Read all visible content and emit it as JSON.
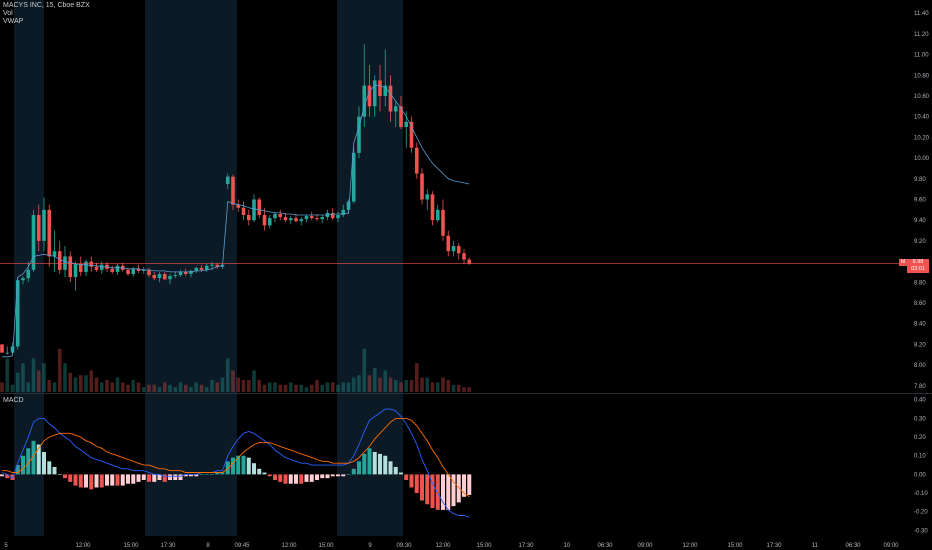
{
  "legend": {
    "symbol": "MACYS INC, 15, Cboe BZX",
    "volume": "Vol",
    "vwap": "VWAP"
  },
  "macd_label": "MACD",
  "price_tag": {
    "badge": "M",
    "value": "8.98",
    "countdown": "03:01"
  },
  "colors": {
    "background": "#000000",
    "up": "#26a69a",
    "down": "#ef5350",
    "vwap": "#5b9bd5",
    "macd_line": "#2962ff",
    "signal_line": "#ff6d00",
    "session_shade": "#0b1a24"
  },
  "price_axis": {
    "ticks": [
      "11.40",
      "11.20",
      "11.00",
      "10.80",
      "10.60",
      "10.40",
      "10.20",
      "10.00",
      "9.80",
      "9.60",
      "9.40",
      "9.20",
      "9.00",
      "8.80",
      "8.60",
      "8.40",
      "8.20",
      "8.00",
      "7.80"
    ]
  },
  "macd_axis": {
    "ticks": [
      "0.40",
      "0.30",
      "0.20",
      "0.10",
      "0.00",
      "-0.10",
      "-0.20",
      "-0.30"
    ]
  },
  "time_axis": {
    "ticks": [
      "5",
      "12:00",
      "15:00",
      "17:30",
      "8",
      "09:45",
      "12:00",
      "15:00",
      "9",
      "09:30",
      "12:00",
      "15:00",
      "17:30",
      "10",
      "06:30",
      "09:00",
      "12:00",
      "15:00",
      "17:30",
      "11",
      "06:30",
      "09:00"
    ]
  },
  "chart_data": {
    "type": "candlestick",
    "title": "MACYS INC, 15, Cboe BZX",
    "ylim": [
      7.74,
      11.45
    ],
    "candles": [
      [
        8.2,
        8.2,
        8.12,
        8.12
      ],
      [
        8.12,
        8.18,
        8.1,
        8.12
      ],
      [
        8.12,
        8.22,
        8.1,
        8.18
      ],
      [
        8.18,
        8.85,
        8.15,
        8.82
      ],
      [
        8.82,
        8.86,
        8.78,
        8.84
      ],
      [
        8.84,
        9.0,
        8.8,
        8.92
      ],
      [
        8.92,
        9.5,
        8.9,
        9.45
      ],
      [
        9.45,
        9.55,
        9.1,
        9.2
      ],
      [
        9.2,
        9.62,
        9.1,
        9.5
      ],
      [
        9.5,
        9.55,
        8.95,
        9.05
      ],
      [
        9.05,
        9.3,
        8.9,
        9.1
      ],
      [
        9.1,
        9.2,
        8.88,
        8.92
      ],
      [
        8.92,
        9.15,
        8.85,
        9.05
      ],
      [
        9.05,
        9.1,
        8.8,
        8.85
      ],
      [
        8.85,
        9.0,
        8.72,
        8.98
      ],
      [
        8.98,
        9.05,
        8.86,
        8.9
      ],
      [
        8.9,
        9.02,
        8.86,
        9.0
      ],
      [
        9.0,
        9.05,
        8.9,
        8.95
      ],
      [
        8.95,
        8.99,
        8.9,
        8.92
      ],
      [
        8.92,
        9.0,
        8.88,
        8.97
      ],
      [
        8.97,
        9.0,
        8.9,
        8.93
      ],
      [
        8.93,
        8.96,
        8.88,
        8.9
      ],
      [
        8.9,
        8.98,
        8.87,
        8.96
      ],
      [
        8.96,
        8.99,
        8.9,
        8.92
      ],
      [
        8.92,
        8.94,
        8.86,
        8.88
      ],
      [
        8.88,
        8.95,
        8.85,
        8.93
      ],
      [
        8.93,
        8.97,
        8.89,
        8.91
      ],
      [
        8.91,
        8.95,
        8.88,
        8.92
      ],
      [
        8.92,
        8.94,
        8.85,
        8.87
      ],
      [
        8.87,
        8.9,
        8.82,
        8.84
      ],
      [
        8.84,
        8.9,
        8.8,
        8.88
      ],
      [
        8.88,
        8.9,
        8.82,
        8.83
      ],
      [
        8.83,
        8.88,
        8.78,
        8.86
      ],
      [
        8.86,
        8.9,
        8.84,
        8.87
      ],
      [
        8.87,
        8.92,
        8.85,
        8.9
      ],
      [
        8.9,
        8.93,
        8.86,
        8.88
      ],
      [
        8.88,
        8.92,
        8.85,
        8.91
      ],
      [
        8.91,
        8.95,
        8.89,
        8.94
      ],
      [
        8.94,
        8.97,
        8.9,
        8.92
      ],
      [
        8.92,
        8.98,
        8.9,
        8.96
      ],
      [
        8.96,
        9.0,
        8.92,
        8.97
      ],
      [
        8.97,
        8.99,
        8.93,
        8.95
      ],
      [
        8.95,
        8.98,
        8.93,
        8.97
      ],
      [
        9.75,
        9.85,
        9.7,
        9.82
      ],
      [
        9.82,
        9.84,
        9.5,
        9.55
      ],
      [
        9.55,
        9.6,
        9.48,
        9.52
      ],
      [
        9.52,
        9.58,
        9.4,
        9.45
      ],
      [
        9.45,
        9.5,
        9.35,
        9.4
      ],
      [
        9.4,
        9.65,
        9.38,
        9.6
      ],
      [
        9.6,
        9.62,
        9.42,
        9.45
      ],
      [
        9.45,
        9.52,
        9.3,
        9.35
      ],
      [
        9.35,
        9.45,
        9.32,
        9.42
      ],
      [
        9.42,
        9.48,
        9.38,
        9.46
      ],
      [
        9.46,
        9.5,
        9.4,
        9.43
      ],
      [
        9.43,
        9.47,
        9.38,
        9.4
      ],
      [
        9.4,
        9.44,
        9.36,
        9.42
      ],
      [
        9.42,
        9.46,
        9.38,
        9.39
      ],
      [
        9.39,
        9.43,
        9.35,
        9.41
      ],
      [
        9.41,
        9.45,
        9.38,
        9.44
      ],
      [
        9.44,
        9.48,
        9.4,
        9.42
      ],
      [
        9.42,
        9.46,
        9.39,
        9.41
      ],
      [
        9.41,
        9.45,
        9.37,
        9.43
      ],
      [
        9.43,
        9.5,
        9.4,
        9.47
      ],
      [
        9.47,
        9.52,
        9.4,
        9.42
      ],
      [
        9.42,
        9.48,
        9.38,
        9.45
      ],
      [
        9.45,
        9.55,
        9.43,
        9.5
      ],
      [
        9.5,
        9.6,
        9.46,
        9.58
      ],
      [
        9.58,
        10.1,
        9.56,
        10.05
      ],
      [
        10.05,
        10.5,
        10.0,
        10.4
      ],
      [
        10.4,
        11.1,
        10.3,
        10.7
      ],
      [
        10.7,
        10.9,
        10.4,
        10.5
      ],
      [
        10.5,
        10.8,
        10.4,
        10.75
      ],
      [
        10.75,
        10.9,
        10.45,
        10.6
      ],
      [
        10.6,
        11.05,
        10.5,
        10.7
      ],
      [
        10.7,
        10.8,
        10.35,
        10.45
      ],
      [
        10.45,
        10.55,
        10.3,
        10.5
      ],
      [
        10.5,
        10.6,
        10.28,
        10.3
      ],
      [
        10.3,
        10.45,
        10.1,
        10.35
      ],
      [
        10.35,
        10.4,
        10.05,
        10.1
      ],
      [
        10.1,
        10.15,
        9.8,
        9.85
      ],
      [
        9.85,
        9.9,
        9.55,
        9.6
      ],
      [
        9.6,
        9.7,
        9.5,
        9.65
      ],
      [
        9.65,
        9.68,
        9.35,
        9.4
      ],
      [
        9.4,
        9.55,
        9.38,
        9.5
      ],
      [
        9.5,
        9.6,
        9.2,
        9.25
      ],
      [
        9.25,
        9.3,
        9.05,
        9.1
      ],
      [
        9.1,
        9.2,
        9.05,
        9.15
      ],
      [
        9.15,
        9.18,
        9.02,
        9.08
      ],
      [
        9.08,
        9.12,
        8.98,
        9.02
      ],
      [
        9.02,
        9.04,
        8.97,
        8.98
      ]
    ],
    "volume": [
      4,
      14,
      3,
      8,
      12,
      4,
      14,
      9,
      12,
      5,
      4,
      18,
      12,
      8,
      6,
      7,
      7,
      9,
      6,
      4,
      5,
      4,
      6,
      4,
      3,
      5,
      4,
      2,
      3,
      3,
      2,
      4,
      3,
      2,
      4,
      3,
      2,
      4,
      3,
      2,
      5,
      4,
      6,
      14,
      9,
      6,
      5,
      5,
      9,
      5,
      3,
      4,
      4,
      3,
      3,
      4,
      3,
      3,
      2,
      3,
      5,
      3,
      4,
      4,
      3,
      4,
      4,
      6,
      7,
      18,
      7,
      10,
      6,
      9,
      6,
      5,
      4,
      5,
      5,
      12,
      6,
      6,
      4,
      4,
      6,
      5,
      3,
      3,
      2,
      2
    ],
    "vwap": [
      8.08,
      8.08,
      8.09,
      8.85,
      8.88,
      8.95,
      9.05,
      9.06,
      9.07,
      9.06,
      9.05,
      9.02,
      9.0,
      8.99,
      8.98,
      8.97,
      8.97,
      8.96,
      8.96,
      8.95,
      8.95,
      8.94,
      8.94,
      8.94,
      8.93,
      8.93,
      8.93,
      8.92,
      8.92,
      8.91,
      8.91,
      8.91,
      8.9,
      8.9,
      8.9,
      8.9,
      8.9,
      8.91,
      8.91,
      8.92,
      8.93,
      8.95,
      8.96,
      9.58,
      9.56,
      9.55,
      9.54,
      9.52,
      9.51,
      9.5,
      9.49,
      9.48,
      9.47,
      9.47,
      9.46,
      9.46,
      9.45,
      9.45,
      9.45,
      9.45,
      9.45,
      9.45,
      9.45,
      9.46,
      9.46,
      9.46,
      9.47,
      10.15,
      10.3,
      10.5,
      10.65,
      10.7,
      10.7,
      10.68,
      10.62,
      10.55,
      10.48,
      10.4,
      10.3,
      10.2,
      10.1,
      10.02,
      9.95,
      9.9,
      9.85,
      9.8,
      9.78,
      9.77,
      9.76,
      9.75
    ],
    "macd": {
      "ylim": [
        -0.33,
        0.42
      ],
      "macd": [
        0.01,
        0.0,
        -0.02,
        0.06,
        0.13,
        0.2,
        0.28,
        0.3,
        0.3,
        0.27,
        0.25,
        0.22,
        0.2,
        0.18,
        0.15,
        0.13,
        0.11,
        0.09,
        0.08,
        0.07,
        0.06,
        0.05,
        0.04,
        0.03,
        0.03,
        0.02,
        0.02,
        0.02,
        0.01,
        0.0,
        0.0,
        -0.01,
        -0.01,
        -0.01,
        -0.01,
        0.0,
        0.0,
        0.0,
        0.01,
        0.01,
        0.01,
        0.02,
        0.02,
        0.1,
        0.15,
        0.19,
        0.22,
        0.23,
        0.22,
        0.2,
        0.18,
        0.16,
        0.13,
        0.11,
        0.09,
        0.08,
        0.07,
        0.06,
        0.06,
        0.05,
        0.05,
        0.05,
        0.05,
        0.05,
        0.05,
        0.05,
        0.06,
        0.1,
        0.16,
        0.23,
        0.29,
        0.31,
        0.33,
        0.35,
        0.35,
        0.34,
        0.31,
        0.27,
        0.22,
        0.16,
        0.08,
        0.02,
        -0.05,
        -0.1,
        -0.15,
        -0.19,
        -0.21,
        -0.22,
        -0.22,
        -0.23
      ],
      "signal": [
        0.02,
        0.02,
        0.01,
        0.01,
        0.03,
        0.06,
        0.1,
        0.14,
        0.18,
        0.2,
        0.21,
        0.22,
        0.22,
        0.22,
        0.21,
        0.2,
        0.18,
        0.17,
        0.15,
        0.14,
        0.12,
        0.11,
        0.1,
        0.09,
        0.08,
        0.07,
        0.06,
        0.05,
        0.05,
        0.04,
        0.03,
        0.03,
        0.02,
        0.02,
        0.02,
        0.01,
        0.01,
        0.01,
        0.01,
        0.01,
        0.01,
        0.01,
        0.01,
        0.03,
        0.06,
        0.09,
        0.12,
        0.14,
        0.16,
        0.17,
        0.17,
        0.17,
        0.16,
        0.15,
        0.14,
        0.13,
        0.12,
        0.11,
        0.1,
        0.09,
        0.08,
        0.07,
        0.07,
        0.06,
        0.06,
        0.06,
        0.06,
        0.07,
        0.09,
        0.12,
        0.15,
        0.19,
        0.22,
        0.25,
        0.28,
        0.3,
        0.3,
        0.3,
        0.29,
        0.26,
        0.22,
        0.18,
        0.13,
        0.09,
        0.04,
        0.0,
        -0.04,
        -0.07,
        -0.1,
        -0.12
      ]
    }
  }
}
